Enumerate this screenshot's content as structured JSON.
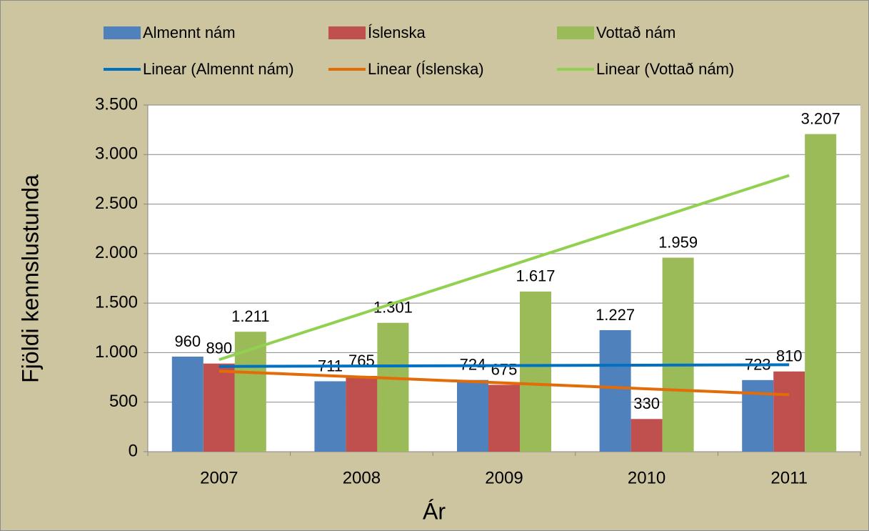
{
  "chart_data": {
    "type": "bar",
    "categories": [
      "2007",
      "2008",
      "2009",
      "2010",
      "2011"
    ],
    "series": [
      {
        "name": "Almennt nám",
        "color": "#4f81bd",
        "values": [
          960,
          711,
          724,
          1227,
          723
        ],
        "value_labels": [
          "960",
          "711",
          "724",
          "1.227",
          "723"
        ],
        "trend": {
          "name": "Linear (Almennt nám)",
          "color": "#0070c0"
        }
      },
      {
        "name": "Íslenska",
        "color": "#c0504d",
        "values": [
          890,
          765,
          675,
          330,
          810
        ],
        "value_labels": [
          "890",
          "765",
          "675",
          "330",
          "810"
        ],
        "trend": {
          "name": "Linear (Íslenska)",
          "color": "#e36c09"
        }
      },
      {
        "name": "Vottað nám",
        "color": "#9bbb59",
        "values": [
          1211,
          1301,
          1617,
          1959,
          3207
        ],
        "value_labels": [
          "1.211",
          "1.301",
          "1.617",
          "1.959",
          "3.207"
        ],
        "trend": {
          "name": "Linear (Vottað nám)",
          "color": "#92d050"
        }
      }
    ],
    "ylim": [
      0,
      3500
    ],
    "yticks": [
      0,
      500,
      {
        "value": 1000,
        "label": "1.000"
      },
      {
        "value": 1500,
        "label": "1.500"
      },
      {
        "value": 2000,
        "label": "2.000"
      },
      {
        "value": 2500,
        "label": "2.500"
      },
      {
        "value": 3000,
        "label": "3.000"
      },
      {
        "value": 3500,
        "label": "3.500"
      }
    ],
    "y_label": "Fjöldi kennslustunda",
    "x_label": "Ár",
    "grid": true,
    "legend": "top"
  }
}
